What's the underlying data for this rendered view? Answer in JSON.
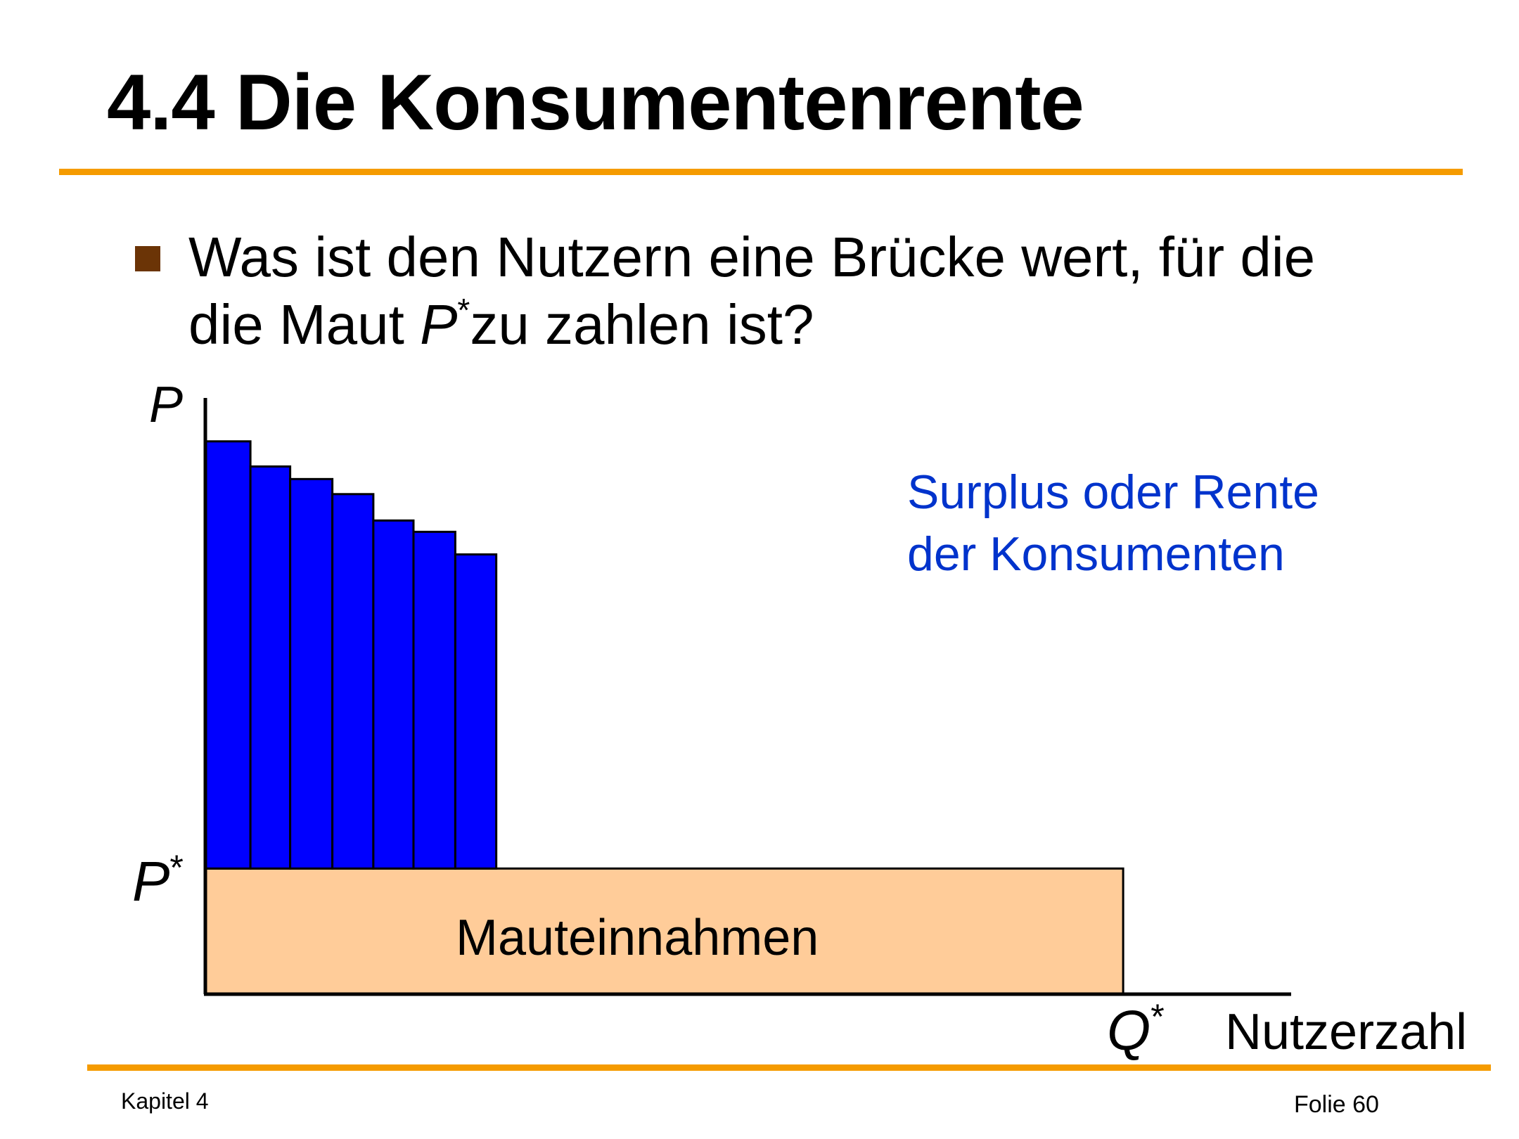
{
  "slide": {
    "title": "4.4 Die Konsumentenrente",
    "bullet": {
      "line1": "Was ist den Nutzern eine Brücke wert, für die",
      "line2_pre": "die Maut ",
      "line2_var": "P",
      "line2_sup": "*",
      "line2_post": "zu zahlen ist?"
    },
    "footer": {
      "left": "Kapitel 4",
      "right": "Folie 60"
    }
  },
  "colors": {
    "accent_rule": "#f59b00",
    "bullet": "#6b3406",
    "surplus_bars": "#0000ff",
    "revenue_area": "#ffcc99",
    "surplus_text": "#0033cc"
  },
  "chart_data": {
    "type": "bar",
    "y_axis_label": "P",
    "price_label": {
      "var": "P",
      "sup": "*"
    },
    "quantity_label": {
      "var": "Q",
      "sup": "*"
    },
    "x_axis_label": "Nutzerzahl",
    "revenue_label": "Mauteinnahmen",
    "surplus_label_line1": "Surplus oder Rente",
    "surplus_label_line2": "der Konsumenten",
    "ylim": [
      0,
      4.6
    ],
    "xlim": [
      0,
      26.5
    ],
    "price": 1,
    "quantity": 22.4,
    "bars": [
      {
        "from": 0,
        "to": 1.1,
        "value": 4.4
      },
      {
        "from": 1.1,
        "to": 2.07,
        "value": 4.2
      },
      {
        "from": 2.07,
        "to": 3.1,
        "value": 4.1
      },
      {
        "from": 3.1,
        "to": 4.1,
        "value": 3.98
      },
      {
        "from": 4.1,
        "to": 5.08,
        "value": 3.77
      },
      {
        "from": 5.08,
        "to": 6.1,
        "value": 3.68
      },
      {
        "from": 6.1,
        "to": 7.1,
        "value": 3.5
      }
    ]
  }
}
